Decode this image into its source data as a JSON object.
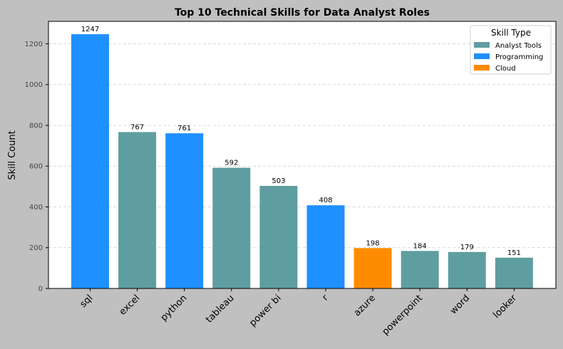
{
  "chart_data": {
    "type": "bar",
    "title": "Top 10 Technical Skills for Data Analyst Roles",
    "xlabel": "",
    "ylabel": "Skill Count",
    "ylim": [
      0,
      1310
    ],
    "yticks": [
      0,
      200,
      400,
      600,
      800,
      1000,
      1200
    ],
    "grid": "y-dashed",
    "legend": {
      "title": "Skill Type",
      "placement": "top-right",
      "entries": [
        {
          "name": "Analyst Tools",
          "color": "#5f9ea0"
        },
        {
          "name": "Programming",
          "color": "#1e90ff"
        },
        {
          "name": "Cloud",
          "color": "#ff8c00"
        }
      ]
    },
    "categories": [
      "sql",
      "excel",
      "python",
      "tableau",
      "power bi",
      "r",
      "azure",
      "powerpoint",
      "word",
      "looker"
    ],
    "values": [
      1247,
      767,
      761,
      592,
      503,
      408,
      198,
      184,
      179,
      151
    ],
    "skill_types": [
      "Programming",
      "Analyst Tools",
      "Programming",
      "Analyst Tools",
      "Analyst Tools",
      "Programming",
      "Cloud",
      "Analyst Tools",
      "Analyst Tools",
      "Analyst Tools"
    ]
  }
}
